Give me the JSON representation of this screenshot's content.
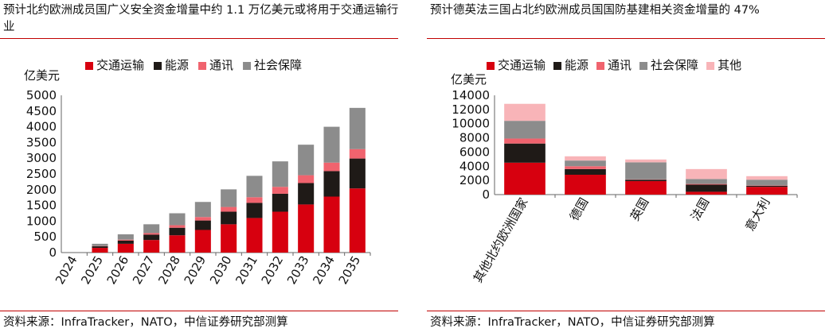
{
  "colors": {
    "transport": "#d7000f",
    "energy": "#1f1a17",
    "telecom": "#f0636e",
    "social": "#8c8c8c",
    "other": "#f8b4b8",
    "rule": "#c00000"
  },
  "left": {
    "title": "预计北约欧洲成员国广义安全资金增量中约 1.1 万亿美元或将用于交通运输行业",
    "source": "资料来源：InfraTracker，NATO，中信证券研究部测算"
  },
  "right": {
    "title": "预计德英法三国占北约欧洲成员国国防基建相关资金增量的 47%",
    "source": "资料来源：InfraTracker，NATO，中信证券研究部测算"
  },
  "chart_data": [
    {
      "type": "bar",
      "stacked": true,
      "ylabel": "亿美元",
      "ylim": [
        0,
        5000
      ],
      "yticks": [
        0,
        500,
        1000,
        1500,
        2000,
        2500,
        3000,
        3500,
        4000,
        4500,
        5000
      ],
      "categories": [
        "2024",
        "2025",
        "2026",
        "2027",
        "2028",
        "2029",
        "2030",
        "2031",
        "2032",
        "2033",
        "2034",
        "2035"
      ],
      "legend_position": "top",
      "series": [
        {
          "name": "交通运输",
          "color_key": "transport",
          "values": [
            0,
            150,
            280,
            400,
            550,
            720,
            900,
            1100,
            1300,
            1530,
            1780,
            2040
          ]
        },
        {
          "name": "能源",
          "color_key": "energy",
          "values": [
            0,
            50,
            100,
            170,
            240,
            300,
            400,
            480,
            570,
            680,
            810,
            950
          ]
        },
        {
          "name": "通讯",
          "color_key": "telecom",
          "values": [
            0,
            10,
            30,
            50,
            80,
            110,
            150,
            180,
            220,
            250,
            270,
            300
          ]
        },
        {
          "name": "社会保障",
          "color_key": "social",
          "values": [
            0,
            70,
            170,
            280,
            380,
            480,
            560,
            680,
            810,
            970,
            1140,
            1310
          ]
        }
      ]
    },
    {
      "type": "bar",
      "stacked": true,
      "ylabel": "亿美元",
      "ylim": [
        0,
        14000
      ],
      "yticks": [
        0,
        2000,
        4000,
        6000,
        8000,
        10000,
        12000,
        14000
      ],
      "categories": [
        "其他北约欧洲国家",
        "德国",
        "英国",
        "法国",
        "意大利"
      ],
      "legend_position": "top",
      "series": [
        {
          "name": "交通运输",
          "color_key": "transport",
          "values": [
            4500,
            2800,
            1900,
            400,
            1100
          ]
        },
        {
          "name": "能源",
          "color_key": "energy",
          "values": [
            2700,
            800,
            200,
            1000,
            150
          ]
        },
        {
          "name": "通讯",
          "color_key": "telecom",
          "values": [
            700,
            400,
            50,
            100,
            50
          ]
        },
        {
          "name": "社会保障",
          "color_key": "social",
          "values": [
            2500,
            800,
            2400,
            700,
            800
          ]
        },
        {
          "name": "其他",
          "color_key": "other",
          "values": [
            2400,
            600,
            400,
            1400,
            500
          ]
        }
      ]
    }
  ]
}
